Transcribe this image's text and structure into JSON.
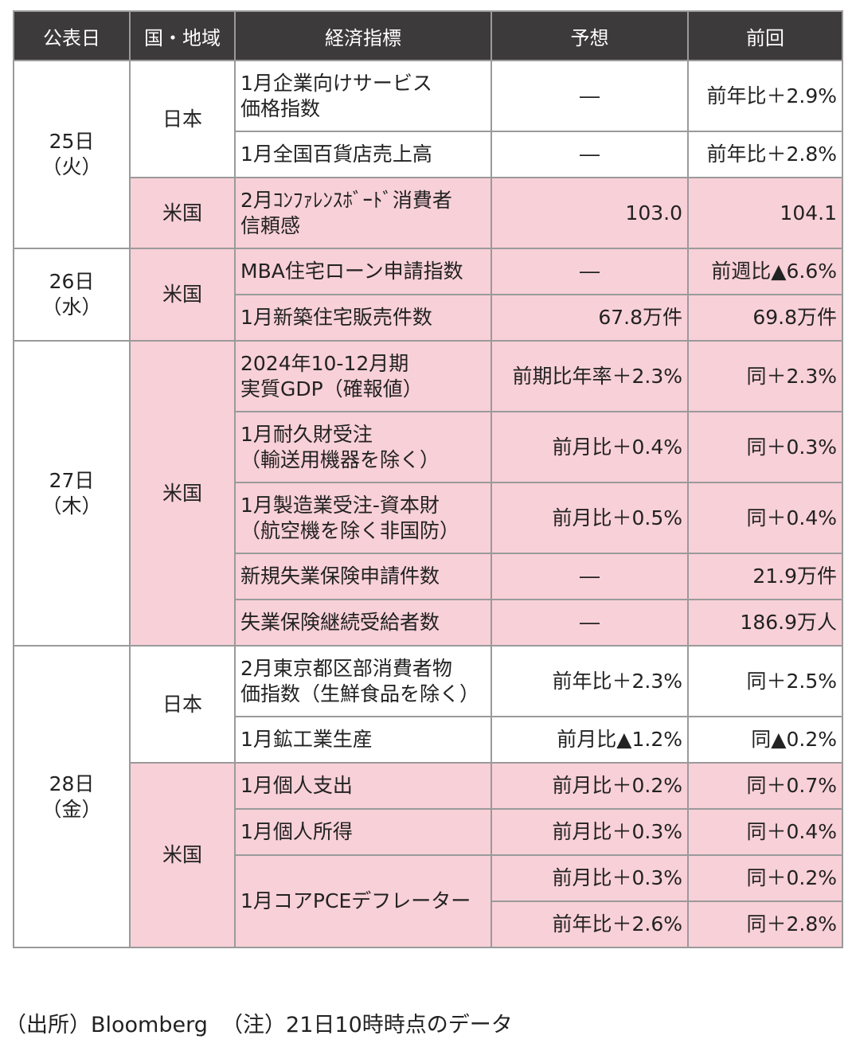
{
  "header": [
    "公表日",
    "国・地域",
    "経済指標",
    "予想",
    "前回"
  ],
  "dates": {
    "d25_day": "25日",
    "d25_wd": "（火）",
    "d26_day": "26日",
    "d26_wd": "（水）",
    "d27_day": "27日",
    "d27_wd": "（木）",
    "d28_day": "28日",
    "d28_wd": "（金）"
  },
  "regions": {
    "japan": "日本",
    "us": "米国"
  },
  "rows": [
    {
      "ind1": "1月企業向けサービス",
      "ind2": "価格指数",
      "forecast": "―",
      "previous": "前年比＋2.9%"
    },
    {
      "ind1": "1月全国百貨店売上高",
      "forecast": "―",
      "previous": "前年比＋2.8%"
    },
    {
      "ind1": "2月ｺﾝﾌｧﾚﾝｽﾎﾞｰﾄﾞ消費者",
      "ind2": "信頼感",
      "forecast": "103.0",
      "previous": "104.1"
    },
    {
      "ind1": "MBA住宅ローン申請指数",
      "forecast": "―",
      "previous": "前週比▲6.6%"
    },
    {
      "ind1": "1月新築住宅販売件数",
      "forecast": "67.8万件",
      "previous": "69.8万件"
    },
    {
      "ind1": "2024年10-12月期",
      "ind2": "実質GDP（確報値）",
      "forecast": "前期比年率＋2.3%",
      "previous": "同＋2.3%"
    },
    {
      "ind1": "1月耐久財受注",
      "ind2": "（輸送用機器を除く）",
      "forecast": "前月比＋0.4%",
      "previous": "同＋0.3%"
    },
    {
      "ind1": "1月製造業受注-資本財",
      "ind2": "（航空機を除く非国防）",
      "forecast": "前月比＋0.5%",
      "previous": "同＋0.4%"
    },
    {
      "ind1": "新規失業保険申請件数",
      "forecast": "―",
      "previous": "21.9万件"
    },
    {
      "ind1": "失業保険継続受給者数",
      "forecast": "―",
      "previous": "186.9万人"
    },
    {
      "ind1": "2月東京都区部消費者物",
      "ind2": "価指数（生鮮食品を除く）",
      "forecast": "前年比＋2.3%",
      "previous": "同＋2.5%"
    },
    {
      "ind1": "1月鉱工業生産",
      "forecast": "前月比▲1.2%",
      "previous": "同▲0.2%"
    },
    {
      "ind1": "1月個人支出",
      "forecast": "前月比＋0.2%",
      "previous": "同＋0.7%"
    },
    {
      "ind1": "1月個人所得",
      "forecast": "前月比＋0.3%",
      "previous": "同＋0.4%"
    },
    {
      "ind1": "1月コアPCEデフレーター",
      "forecast": "前月比＋0.3%",
      "previous": "同＋0.2%"
    },
    {
      "forecast": "前年比＋2.6%",
      "previous": "同＋2.8%"
    }
  ],
  "footnote": "（出所）Bloomberg  （注）21日10時時点のデータ"
}
